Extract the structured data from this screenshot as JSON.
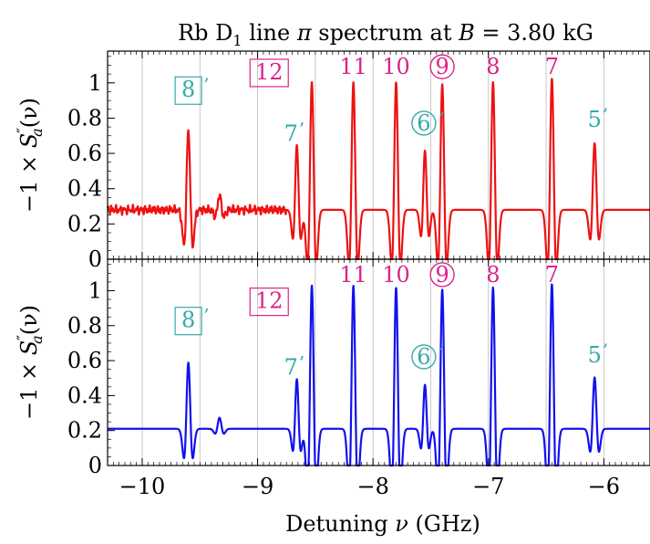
{
  "chart_data": {
    "type": "line",
    "title_text": "Rb D",
    "title_sub": "1",
    "title_mid": " line ",
    "title_pi": "π",
    "title_tail": " spectrum at ",
    "title_b": "B",
    "title_val": " = 3.80 kG",
    "xlabel_text": "Detuning ",
    "xlabel_sym": "ν",
    "xlabel_unit": " (GHz)",
    "ylabel_pre": "−1 × ",
    "ylabel_s": "S",
    "ylabel_prime": "″",
    "ylabel_sub": "a",
    "ylabel_post": "(ν)",
    "xlim": [
      -10.3,
      -5.6
    ],
    "xticks": [
      -10,
      -9,
      -8,
      -7,
      -6
    ],
    "xtick_labels": [
      "−10",
      "−9",
      "−8",
      "−7",
      "−6"
    ],
    "ylim": [
      0,
      1.18
    ],
    "yticks": [
      0,
      0.2,
      0.4,
      0.6,
      0.8,
      1
    ],
    "ytick_labels": [
      "0",
      "0.2",
      "0.4",
      "0.6",
      "0.8",
      "1"
    ],
    "vgrid": [
      -10,
      -9.5,
      -9,
      -8.5,
      -8,
      -7.5,
      -7,
      -6.5,
      -6
    ],
    "panels": [
      {
        "name": "",
        "color": "#ee1111",
        "baseline": 0.28,
        "noisy": true,
        "peaks": [
          {
            "x": -9.6,
            "h": 0.71,
            "w": 0.022
          },
          {
            "x": -9.33,
            "h": 0.36,
            "w": 0.022
          },
          {
            "x": -8.66,
            "h": 0.63,
            "w": 0.02
          },
          {
            "x": -8.53,
            "h": 0.97,
            "w": 0.022
          },
          {
            "x": -8.17,
            "h": 0.97,
            "w": 0.022
          },
          {
            "x": -7.8,
            "h": 0.97,
            "w": 0.022
          },
          {
            "x": -7.55,
            "h": 0.6,
            "w": 0.02
          },
          {
            "x": -7.4,
            "h": 0.96,
            "w": 0.022
          },
          {
            "x": -6.96,
            "h": 0.97,
            "w": 0.022
          },
          {
            "x": -6.45,
            "h": 0.99,
            "w": 0.022
          },
          {
            "x": -6.08,
            "h": 0.64,
            "w": 0.022
          }
        ]
      },
      {
        "name": "",
        "color": "#1111ee",
        "baseline": 0.21,
        "noisy": false,
        "peaks": [
          {
            "x": -9.6,
            "h": 0.57,
            "w": 0.022
          },
          {
            "x": -9.33,
            "h": 0.27,
            "w": 0.022
          },
          {
            "x": -8.66,
            "h": 0.48,
            "w": 0.02
          },
          {
            "x": -8.53,
            "h": 0.99,
            "w": 0.022
          },
          {
            "x": -8.17,
            "h": 0.99,
            "w": 0.022
          },
          {
            "x": -7.8,
            "h": 0.98,
            "w": 0.022
          },
          {
            "x": -7.55,
            "h": 0.45,
            "w": 0.02
          },
          {
            "x": -7.4,
            "h": 0.97,
            "w": 0.022
          },
          {
            "x": -6.96,
            "h": 0.98,
            "w": 0.022
          },
          {
            "x": -6.45,
            "h": 1.0,
            "w": 0.022
          },
          {
            "x": -6.08,
            "h": 0.49,
            "w": 0.022
          }
        ]
      }
    ],
    "annotations": [
      {
        "text": "8",
        "suffix": "’",
        "x": -9.6,
        "y": [
          0.92,
          0.79
        ],
        "color": "#33aaaa",
        "style": "box"
      },
      {
        "text": "7",
        "suffix": "’",
        "x": -8.71,
        "y": [
          0.67,
          0.52
        ],
        "color": "#33aaaa",
        "style": "none"
      },
      {
        "text": "12",
        "suffix": "",
        "x": -8.9,
        "y": [
          1.02,
          0.9
        ],
        "color": "#dd2288",
        "style": "box"
      },
      {
        "text": "11",
        "suffix": "",
        "x": -8.17,
        "y": [
          1.05,
          1.05
        ],
        "color": "#dd2288",
        "style": "none"
      },
      {
        "text": "10",
        "suffix": "",
        "x": -7.8,
        "y": [
          1.05,
          1.05
        ],
        "color": "#dd2288",
        "style": "none"
      },
      {
        "text": "6",
        "suffix": "’",
        "x": -7.56,
        "y": [
          0.73,
          0.58
        ],
        "color": "#33aaaa",
        "style": "circle"
      },
      {
        "text": "9",
        "suffix": "",
        "x": -7.4,
        "y": [
          1.05,
          1.05
        ],
        "color": "#dd2288",
        "style": "circle"
      },
      {
        "text": "8",
        "suffix": "",
        "x": -6.96,
        "y": [
          1.05,
          1.05
        ],
        "color": "#dd2288",
        "style": "none"
      },
      {
        "text": "7",
        "suffix": "",
        "x": -6.45,
        "y": [
          1.05,
          1.05
        ],
        "color": "#dd2288",
        "style": "none"
      },
      {
        "text": "5",
        "suffix": "’",
        "x": -6.08,
        "y": [
          0.75,
          0.59
        ],
        "color": "#33aaaa",
        "style": "none"
      }
    ]
  }
}
